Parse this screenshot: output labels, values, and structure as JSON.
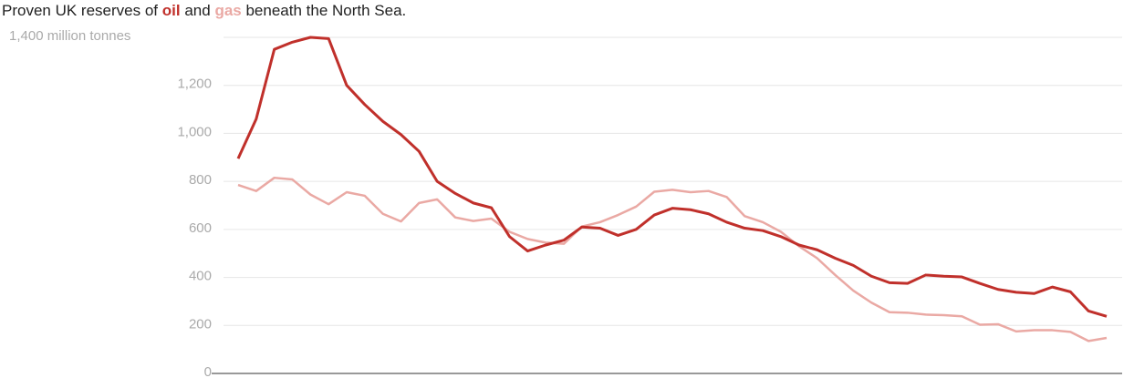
{
  "chart_data": {
    "type": "line",
    "title": [
      "Proven UK reserves of",
      "and",
      "beneath the North Sea."
    ],
    "categories": [
      null,
      null,
      null,
      null,
      null,
      null,
      null,
      null,
      null,
      null,
      null,
      null,
      null,
      null,
      null,
      null,
      null,
      null,
      null,
      null,
      null,
      null,
      null,
      null,
      null,
      null,
      null,
      null,
      null,
      null,
      null,
      null,
      null,
      null,
      null,
      null,
      null,
      null,
      null,
      null,
      null,
      null,
      null,
      null,
      null,
      null,
      null,
      null,
      null
    ],
    "series": [
      {
        "name": "oil",
        "color": "#c0302b",
        "values": [
          895,
          1060,
          1350,
          1380,
          1400,
          1395,
          1200,
          1120,
          1050,
          995,
          925,
          800,
          750,
          710,
          690,
          570,
          510,
          535,
          555,
          610,
          605,
          575,
          600,
          660,
          688,
          682,
          665,
          630,
          605,
          595,
          570,
          535,
          515,
          480,
          450,
          405,
          378,
          375,
          410,
          405,
          402,
          375,
          350,
          338,
          333,
          360,
          340,
          260,
          238
        ]
      },
      {
        "name": "gas",
        "color": "#eaa9a4",
        "values": [
          785,
          760,
          815,
          808,
          745,
          705,
          755,
          740,
          665,
          633,
          710,
          725,
          650,
          635,
          645,
          590,
          560,
          545,
          540,
          612,
          630,
          660,
          695,
          757,
          765,
          755,
          760,
          735,
          655,
          630,
          590,
          530,
          480,
          410,
          345,
          295,
          255,
          253,
          245,
          243,
          238,
          203,
          205,
          175,
          180,
          180,
          173,
          135,
          148
        ]
      }
    ],
    "ylim": [
      0,
      1400
    ],
    "yticks": [
      0,
      200,
      400,
      600,
      800,
      {
        "value": 1000,
        "label": "1,000"
      },
      {
        "value": 1200,
        "label": "1,200"
      },
      {
        "value": 1400,
        "label": "1,400 million tonnes"
      }
    ],
    "grid": true
  }
}
